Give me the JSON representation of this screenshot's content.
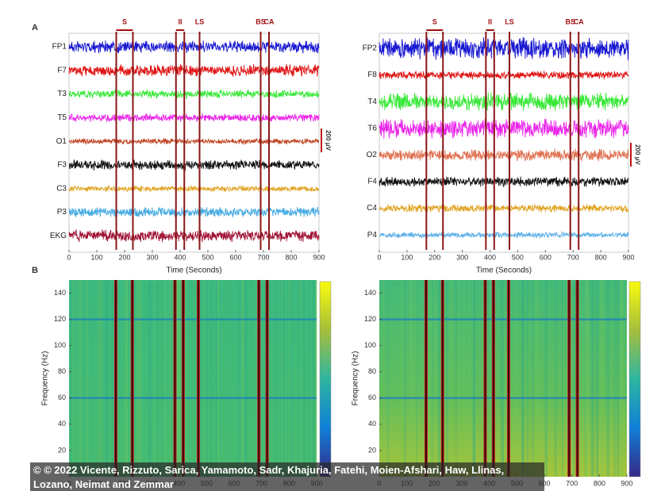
{
  "xlim": [
    0,
    900
  ],
  "xticks": [
    0,
    100,
    200,
    300,
    400,
    500,
    600,
    700,
    800,
    900
  ],
  "events": [
    {
      "label": "S",
      "times": [
        170,
        230
      ]
    },
    {
      "label": "II",
      "times": [
        385,
        415
      ]
    },
    {
      "label": "LS",
      "times": [
        470
      ]
    },
    {
      "label": "BS",
      "times": [
        690
      ]
    },
    {
      "label": "CA",
      "times": [
        720
      ]
    }
  ],
  "panel_a": {
    "label": "A",
    "xlabel": "Time (Seconds)",
    "scale_label": "200 μV",
    "left_channels": [
      {
        "name": "FP1",
        "color": "#1818d2"
      },
      {
        "name": "F7",
        "color": "#e01414"
      },
      {
        "name": "T3",
        "color": "#38e838"
      },
      {
        "name": "T5",
        "color": "#ea24ea"
      },
      {
        "name": "O1",
        "color": "#c04422"
      },
      {
        "name": "F3",
        "color": "#111111"
      },
      {
        "name": "C3",
        "color": "#e0a424"
      },
      {
        "name": "P3",
        "color": "#44aae2"
      },
      {
        "name": "EKG",
        "color": "#a01234"
      }
    ],
    "right_channels": [
      {
        "name": "FP2",
        "color": "#1818d2"
      },
      {
        "name": "F8",
        "color": "#e01414"
      },
      {
        "name": "T4",
        "color": "#38e838"
      },
      {
        "name": "T6",
        "color": "#ea24ea"
      },
      {
        "name": "O2",
        "color": "#e07252"
      },
      {
        "name": "F4",
        "color": "#111111"
      },
      {
        "name": "C4",
        "color": "#e0a424"
      },
      {
        "name": "P4",
        "color": "#62b2e8"
      }
    ]
  },
  "panel_b": {
    "label": "B",
    "ylabel": "Frequency (Hz)",
    "ylim": [
      0,
      150
    ],
    "yticks": [
      20,
      40,
      60,
      80,
      100,
      120,
      140
    ],
    "line_noise": [
      60,
      120
    ]
  },
  "caption": "© © 2022 Vicente, Rizzuto, Sarica, Yamamoto, Sadr, Khajuria, Fatehi, Moien-Afshari, Haw, Llinas, Lozano, Neimat and Zemmar"
}
